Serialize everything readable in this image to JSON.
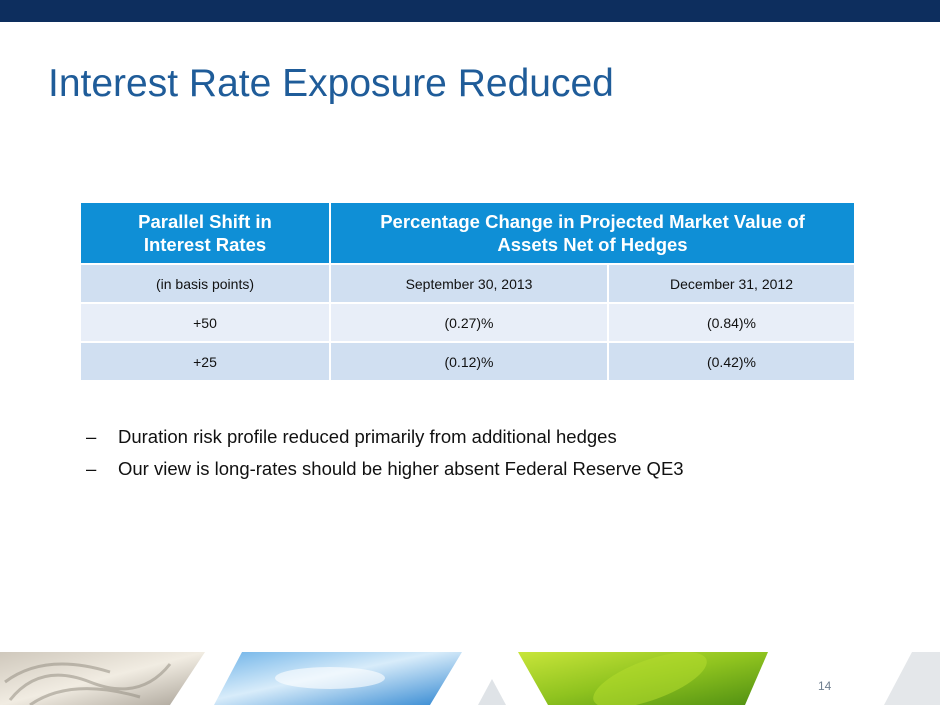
{
  "slide": {
    "title": "Interest Rate Exposure Reduced",
    "page_number": "14"
  },
  "table": {
    "header": {
      "col1_line1": "Parallel Shift in",
      "col1_line2": "Interest Rates",
      "col2_line1": "Percentage Change in Projected Market Value of",
      "col2_line2": "Assets Net of Hedges"
    },
    "subheader": [
      "(in basis points)",
      "September 30, 2013",
      "December 31, 2012"
    ],
    "rows": [
      [
        "+50",
        "(0.27)%",
        "(0.84)%"
      ],
      [
        "+25",
        "(0.12)%",
        "(0.42)%"
      ]
    ]
  },
  "bullets": [
    {
      "marker": "–",
      "text": "Duration risk profile reduced primarily from additional hedges"
    },
    {
      "marker": "–",
      "text": "Our view is long-rates should be higher absent Federal Reserve QE3"
    }
  ],
  "colors": {
    "top_bar": "#0d2e5e",
    "title": "#1f5c99",
    "header_bg": "#0f8fd6",
    "row_dark": "#d0dff1",
    "row_light": "#e8eef8"
  }
}
